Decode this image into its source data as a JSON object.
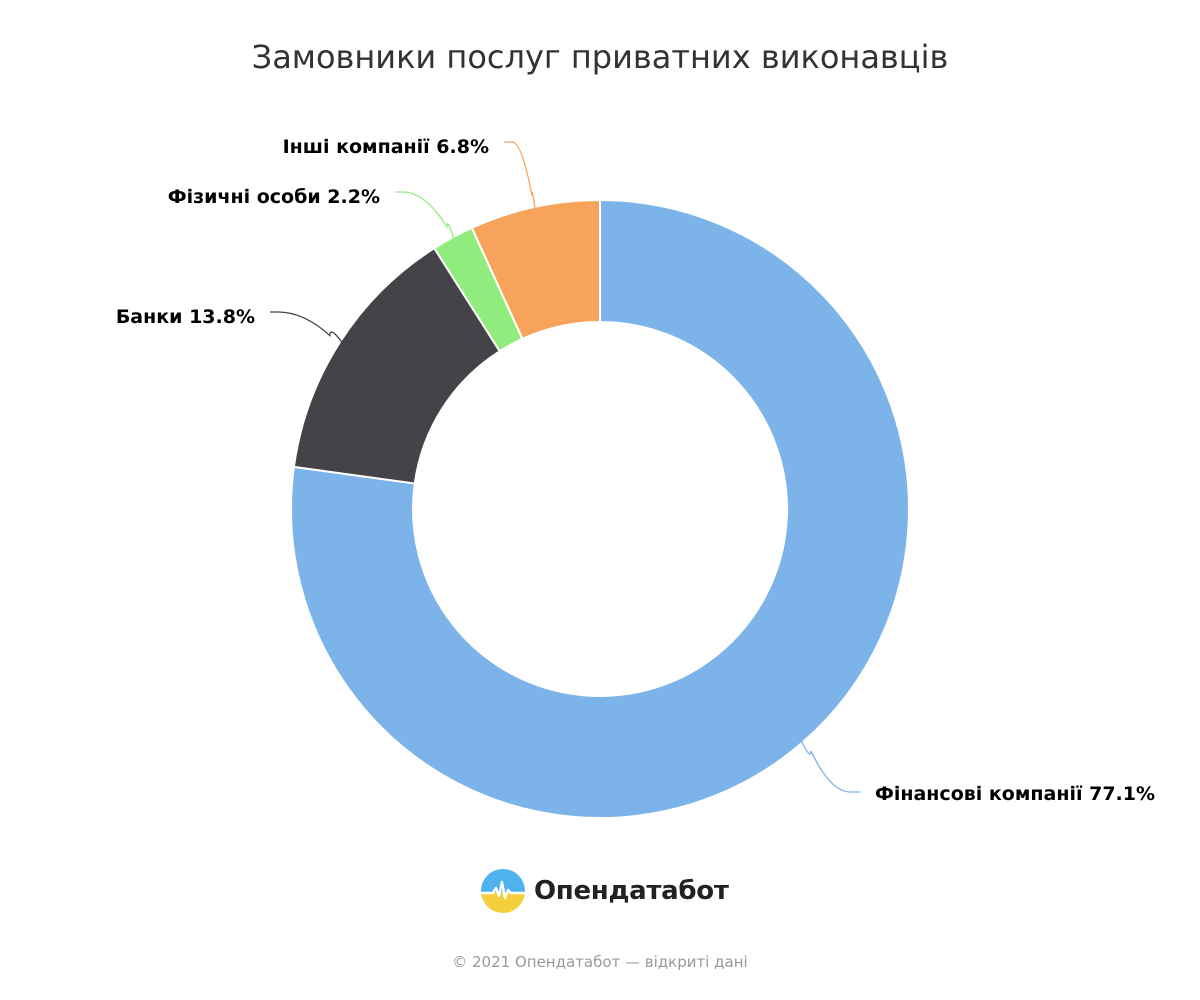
{
  "chart_data": {
    "type": "pie",
    "title": "Замовники послуг приватних виконавців",
    "donut": true,
    "start_angle_deg": 0,
    "direction": "clockwise",
    "slices": [
      {
        "label": "Фінансові компанії",
        "value": 77.1,
        "display": "Фінансові компанії 77.1%",
        "color": "#7cb4ea"
      },
      {
        "label": "Банки",
        "value": 13.8,
        "display": "Банки 13.8%",
        "color": "#434348"
      },
      {
        "label": "Фізичні особи",
        "value": 2.2,
        "display": "Фізичні особи 2.2%",
        "color": "#90ed7d"
      },
      {
        "label": "Інші компанії",
        "value": 6.8,
        "display": "Інші компанії 6.8%",
        "color": "#f7a35c"
      }
    ]
  },
  "branding": {
    "logo_name": "opendatabot-logo-icon",
    "logo_text": "Опендатабот"
  },
  "footer": {
    "credits": "© 2021 Опендатабот — відкриті дані"
  }
}
